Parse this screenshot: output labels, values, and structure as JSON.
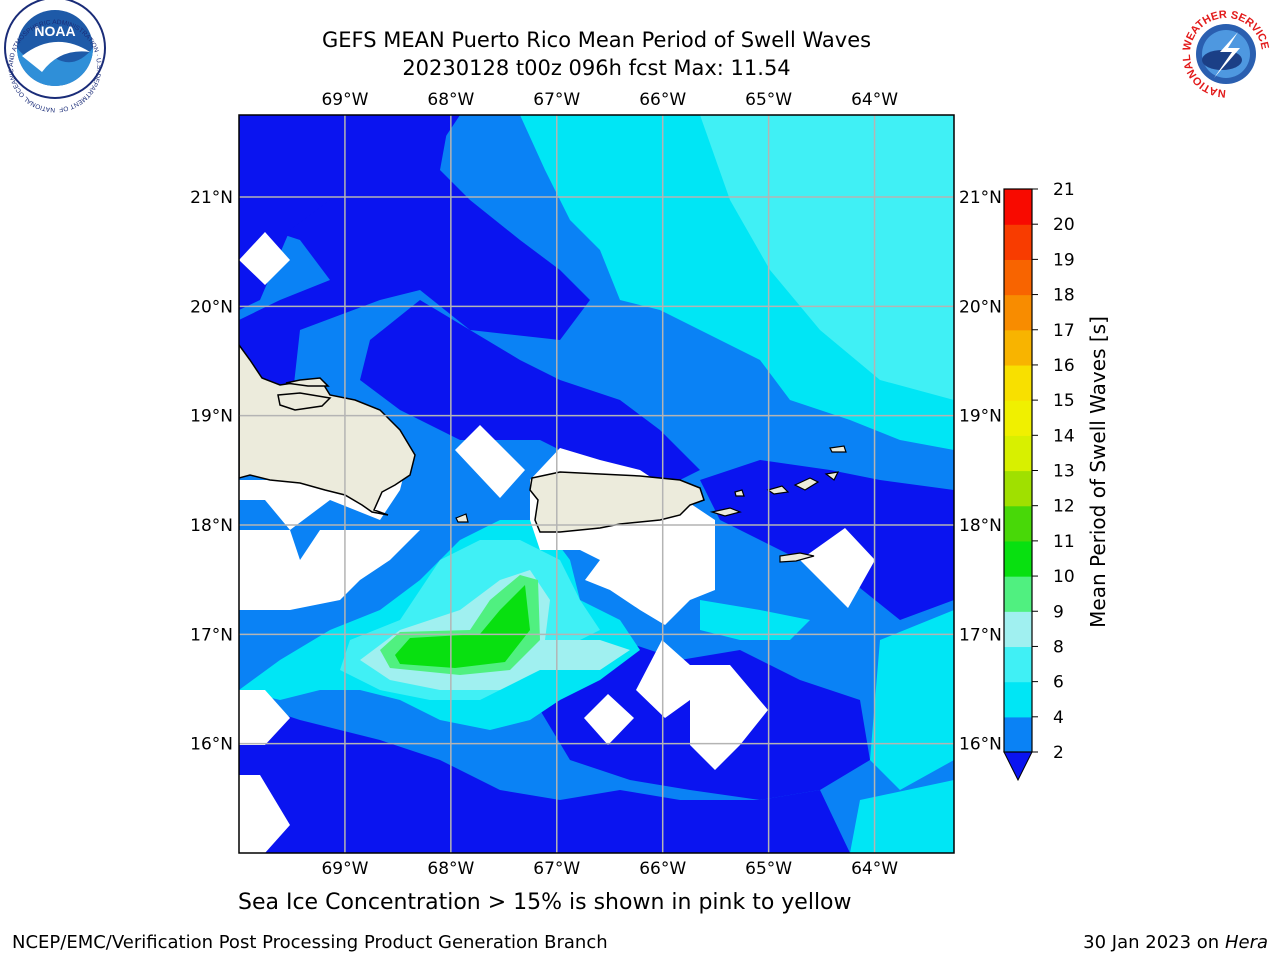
{
  "title": {
    "line1": "GEFS MEAN Puerto Rico Mean Period of Swell Waves",
    "line2": "20230128 t00z 096h fcst   Max: 11.54"
  },
  "map": {
    "lon_labels": [
      "69°W",
      "68°W",
      "67°W",
      "66°W",
      "65°W",
      "64°W"
    ],
    "lat_labels": [
      "21°N",
      "20°N",
      "19°N",
      "18°N",
      "17°N",
      "16°N"
    ],
    "lon_range": [
      -70.0,
      -63.25
    ],
    "lat_range": [
      15.0,
      21.75
    ]
  },
  "colorbar": {
    "label": "Mean Period of Swell Waves [s]",
    "ticks": [
      "2",
      "4",
      "6",
      "8",
      "9",
      "10",
      "11",
      "12",
      "13",
      "14",
      "15",
      "16",
      "17",
      "18",
      "19",
      "20",
      "21"
    ],
    "colors": [
      "#0a14f0",
      "#0a82f5",
      "#00e6f5",
      "#40f0f5",
      "#a0f0f0",
      "#50f080",
      "#08e010",
      "#48d808",
      "#a0e000",
      "#d8f000",
      "#f0f000",
      "#f8e000",
      "#f8b400",
      "#f88c00",
      "#f86400",
      "#f83c00",
      "#f80a00"
    ]
  },
  "caption": "Sea Ice Concentration > 15% is shown in pink to yellow",
  "footer": {
    "left": "NCEP/EMC/Verification Post Processing Product Generation Branch",
    "right_date": "30 Jan 2023 on ",
    "right_host": "Hera"
  },
  "logos": {
    "noaa": "NOAA",
    "noaa_ring": "NATIONAL OCEANIC AND ATMOSPHERIC ADMINISTRATION · U.S. DEPARTMENT OF COMMERCE",
    "nws_ring": "NATIONAL WEATHER SERVICE"
  }
}
